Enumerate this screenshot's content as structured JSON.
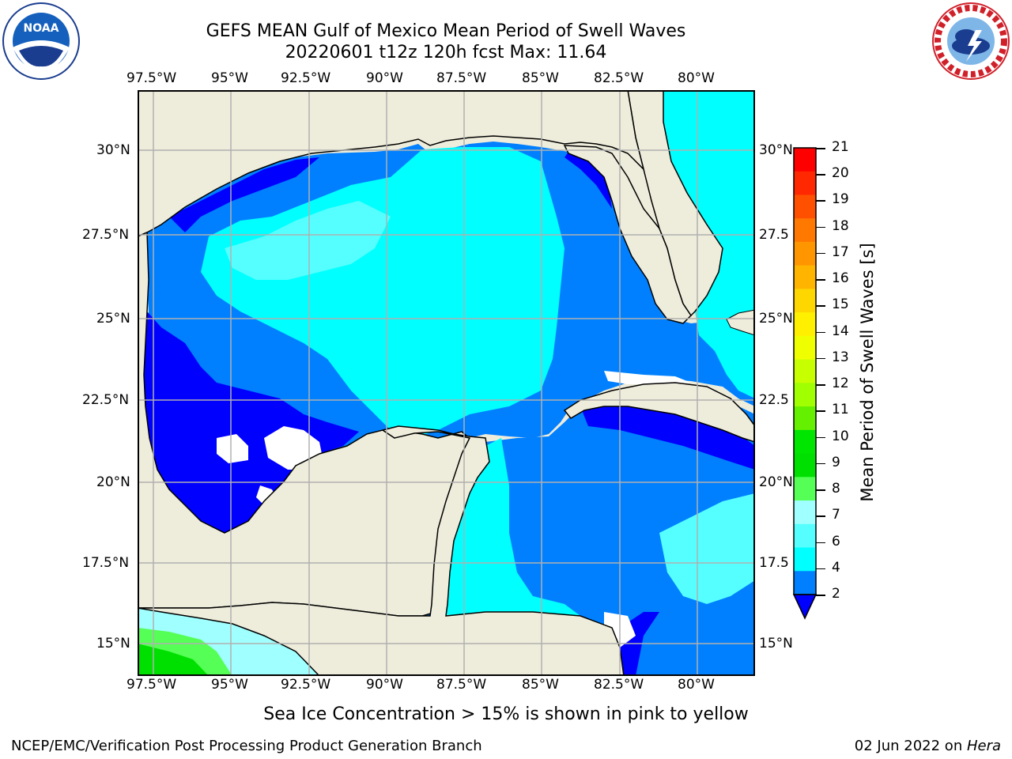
{
  "header": {
    "title_line1": "GEFS MEAN Gulf of Mexico Mean Period of Swell Waves",
    "title_line2": "20220601 t12z 120h fcst   Max: 11.64"
  },
  "map": {
    "lon_labels": [
      "97.5°W",
      "95°W",
      "92.5°W",
      "90°W",
      "87.5°W",
      "85°W",
      "82.5°W",
      "80°W"
    ],
    "lat_labels_left": [
      "30°N",
      "27.5°N",
      "25°N",
      "22.5°N",
      "20°N",
      "17.5°N",
      "15°N"
    ],
    "lat_labels_right": [
      "30°N",
      "27.5",
      "25°N",
      "22.5",
      "20°N",
      "17.5",
      "15°N"
    ],
    "colors": {
      "land": "#eeecdb",
      "water_blue": "#0080ff",
      "dark_blue": "#0000ff",
      "cyan": "#00ffff",
      "light_cyan": "#55ffff",
      "pale_cyan": "#a0ffff",
      "green": "#00e000",
      "light_green": "#55ff55",
      "grid": "#b0b0b0"
    }
  },
  "colorbar": {
    "title": "Mean Period of Swell Waves [s]",
    "ticks": [
      "21",
      "20",
      "19",
      "18",
      "17",
      "16",
      "15",
      "14",
      "13",
      "12",
      "11",
      "10",
      "9",
      "8",
      "7",
      "6",
      "4",
      "2"
    ],
    "colors": [
      "#ff0000",
      "#ff2800",
      "#ff5000",
      "#ff7800",
      "#ff9600",
      "#ffb400",
      "#ffd700",
      "#fff000",
      "#f0ff00",
      "#c8ff00",
      "#a0ff00",
      "#64f000",
      "#00e600",
      "#00e000",
      "#55ff55",
      "#a0ffff",
      "#55ffff",
      "#00ffff",
      "#0080ff"
    ],
    "extend_color": "#0000ff"
  },
  "note": "Sea Ice Concentration > 15% is shown in pink to yellow",
  "footer": {
    "left": "NCEP/EMC/Verification Post Processing Product Generation Branch",
    "date": "02 Jun 2022 on ",
    "host": "Hera"
  },
  "logos": {
    "left": "noaa-logo",
    "right": "nws-logo"
  }
}
